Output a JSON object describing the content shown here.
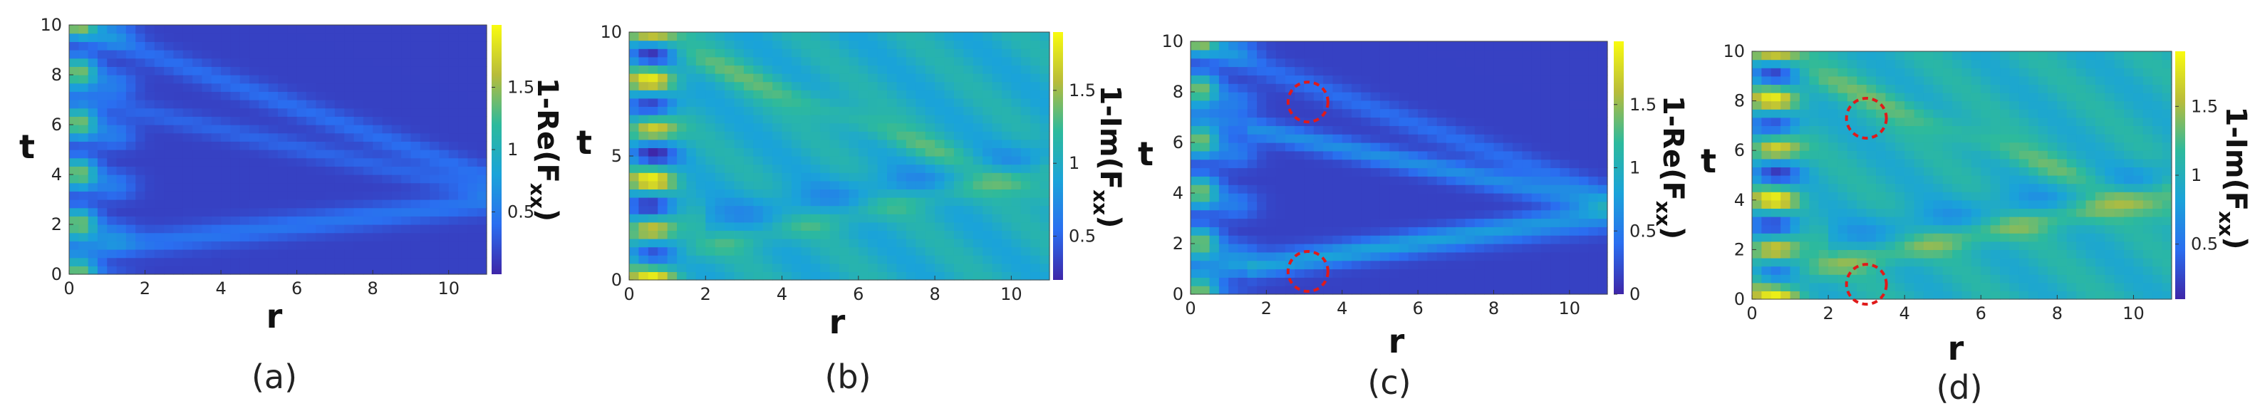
{
  "chart_data": [
    {
      "type": "heatmap",
      "panel_label": "(a)",
      "xlabel": "r",
      "ylabel": "t",
      "colorbar_label": "1-Re(F",
      "colorbar_sub": "xx",
      "colorbar_close": ")",
      "xlim": [
        0,
        11
      ],
      "ylim": [
        0,
        10
      ],
      "xticks": [
        "0",
        "2",
        "4",
        "6",
        "8",
        "10"
      ],
      "yticks": [
        "0",
        "2",
        "4",
        "6",
        "8",
        "10"
      ],
      "clim": [
        0,
        2
      ],
      "cbar_ticks": [
        "0.5",
        "1",
        "1.5"
      ],
      "base_level": 0.15,
      "markers": []
    },
    {
      "type": "heatmap",
      "panel_label": "(b)",
      "xlabel": "r",
      "ylabel": "t",
      "colorbar_label": "1-Im(F",
      "colorbar_sub": "xx",
      "colorbar_close": ")",
      "xlim": [
        0,
        11
      ],
      "ylim": [
        0,
        10
      ],
      "xticks": [
        "0",
        "2",
        "4",
        "6",
        "8",
        "10"
      ],
      "yticks": [
        "0",
        "5",
        "10"
      ],
      "clim": [
        0.2,
        1.9
      ],
      "cbar_ticks": [
        "0.5",
        "1",
        "1.5"
      ],
      "base_level": 1.0,
      "markers": []
    },
    {
      "type": "heatmap",
      "panel_label": "(c)",
      "xlabel": "r",
      "ylabel": "t",
      "colorbar_label": "1-Re(F",
      "colorbar_sub": "xx",
      "colorbar_close": ")",
      "xlim": [
        0,
        11
      ],
      "ylim": [
        0,
        10
      ],
      "xticks": [
        "0",
        "2",
        "4",
        "6",
        "8",
        "10"
      ],
      "yticks": [
        "0",
        "2",
        "4",
        "6",
        "8",
        "10"
      ],
      "clim": [
        0,
        2
      ],
      "cbar_ticks": [
        "0",
        "0.5",
        "1",
        "1.5"
      ],
      "base_level": 0.15,
      "markers": [
        {
          "r": 3.1,
          "t": 7.6
        },
        {
          "r": 3.1,
          "t": 0.9
        }
      ]
    },
    {
      "type": "heatmap",
      "panel_label": "(d)",
      "xlabel": "r",
      "ylabel": "t",
      "colorbar_label": "1-Im(F",
      "colorbar_sub": "xx",
      "colorbar_close": ")",
      "xlim": [
        0,
        11
      ],
      "ylim": [
        0,
        10
      ],
      "xticks": [
        "0",
        "2",
        "4",
        "6",
        "8",
        "10"
      ],
      "yticks": [
        "0",
        "2",
        "4",
        "6",
        "8",
        "10"
      ],
      "clim": [
        0.1,
        1.9
      ],
      "cbar_ticks": [
        "0.5",
        "1",
        "1.5"
      ],
      "base_level": 1.0,
      "markers": [
        {
          "r": 3.0,
          "t": 7.3
        },
        {
          "r": 3.0,
          "t": 0.6
        }
      ]
    }
  ]
}
